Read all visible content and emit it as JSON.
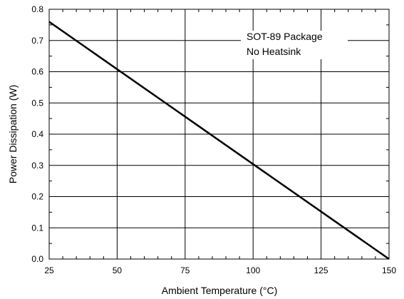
{
  "chart_data": {
    "type": "line",
    "title": "",
    "xlabel": "Ambient Temperature (°C)",
    "ylabel": "Power Dissipation (W)",
    "xlim": [
      25,
      150
    ],
    "ylim": [
      0,
      0.8
    ],
    "xticks": [
      25,
      50,
      75,
      100,
      125,
      150
    ],
    "yticks": [
      0.0,
      0.1,
      0.2,
      0.3,
      0.4,
      0.5,
      0.6,
      0.7,
      0.8
    ],
    "xtick_labels": [
      "25",
      "50",
      "75",
      "100",
      "125",
      "150"
    ],
    "ytick_labels": [
      "0.0",
      "0.1",
      "0.2",
      "0.3",
      "0.4",
      "0.5",
      "0.6",
      "0.7",
      "0.8"
    ],
    "grid": true,
    "annotations": [
      "SOT-89 Package",
      "No Heatsink"
    ],
    "series": [
      {
        "x": [
          25,
          150
        ],
        "y": [
          0.76,
          0.0
        ]
      }
    ]
  }
}
